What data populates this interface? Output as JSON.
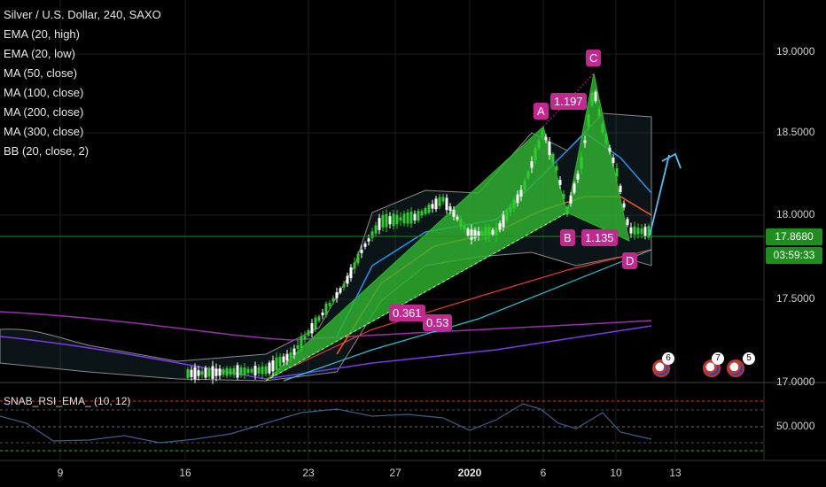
{
  "title": "Silver / U.S. Dollar, 240, SAXO",
  "indicators": [
    "EMA (20, high)",
    "EMA (20, low)",
    "MA (50, close)",
    "MA (100, close)",
    "MA (200, close)",
    "MA (300, close)",
    "BB (20, close, 2)"
  ],
  "price_axis": [
    "19.0000",
    "18.5000",
    "18.0000",
    "17.5000",
    "17.0000"
  ],
  "current_price": "17.8680",
  "countdown": "03:59:33",
  "time_axis": [
    "9",
    "16",
    "23",
    "27",
    "2020",
    "6",
    "10",
    "13"
  ],
  "pattern_points": {
    "A": "A",
    "B": "B",
    "C": "C",
    "D": "D"
  },
  "ratios": {
    "ab": "1.197",
    "bd": "1.135",
    "xb": "0.361",
    "ac": "0.53"
  },
  "rsi_legend": "SNAB_RSI_EMA_ (10, 12)",
  "rsi_axis": "50.0000",
  "events": [
    "6",
    "7",
    "5"
  ],
  "colors": {
    "pattern_fill": "#2fb52f",
    "label_bg": "#c2288f",
    "price_line": "#1e8f1e",
    "arrow": "#4fc3f7"
  }
}
